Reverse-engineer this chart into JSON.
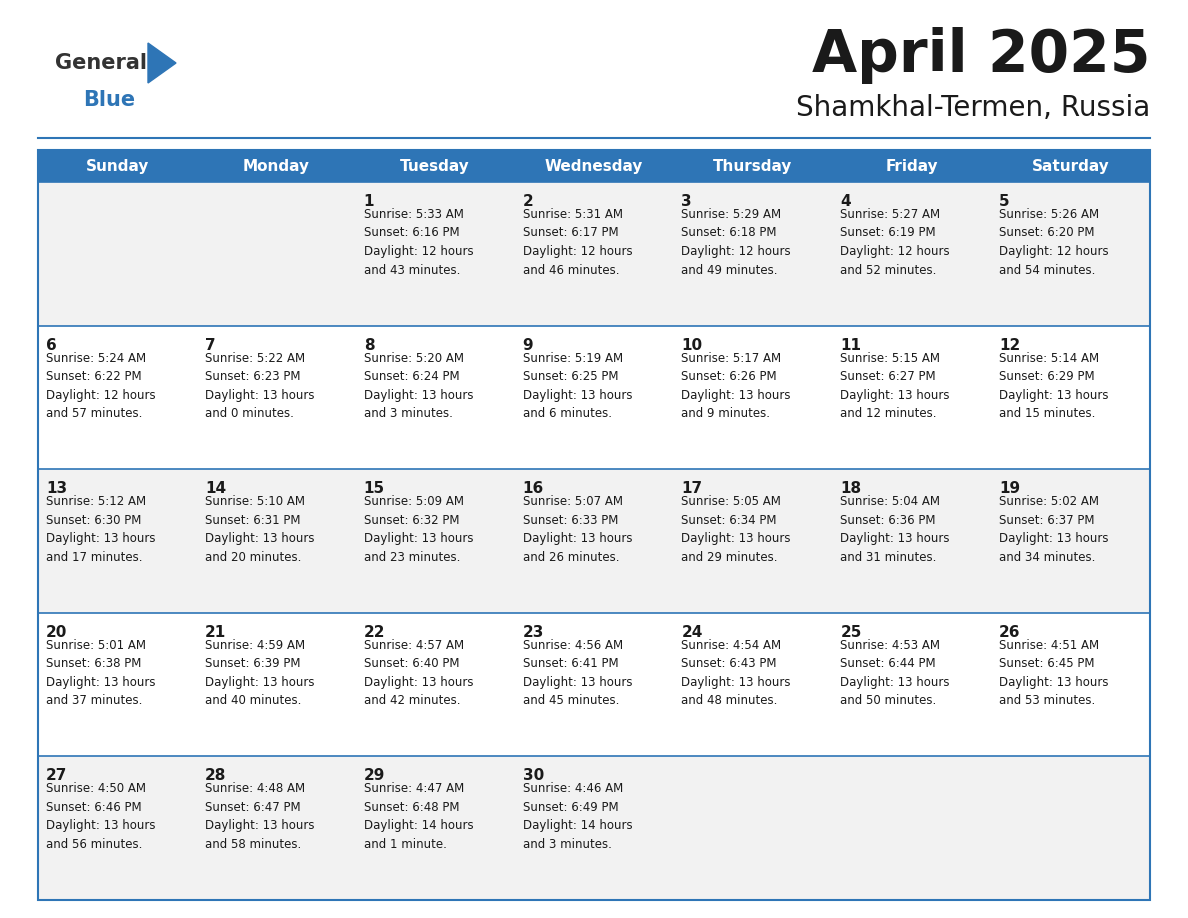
{
  "title": "April 2025",
  "subtitle": "Shamkhal-Termen, Russia",
  "header_bg": "#2E75B6",
  "header_text_color": "#FFFFFF",
  "day_names": [
    "Sunday",
    "Monday",
    "Tuesday",
    "Wednesday",
    "Thursday",
    "Friday",
    "Saturday"
  ],
  "cell_bg_light": "#F2F2F2",
  "cell_bg_white": "#FFFFFF",
  "divider_color": "#2E75B6",
  "text_color": "#1A1A1A",
  "logo_general_color": "#333333",
  "logo_blue_color": "#2E75B6",
  "logo_triangle_color": "#2E75B6",
  "calendar": [
    [
      {
        "day": null,
        "info": ""
      },
      {
        "day": null,
        "info": ""
      },
      {
        "day": 1,
        "info": "Sunrise: 5:33 AM\nSunset: 6:16 PM\nDaylight: 12 hours\nand 43 minutes."
      },
      {
        "day": 2,
        "info": "Sunrise: 5:31 AM\nSunset: 6:17 PM\nDaylight: 12 hours\nand 46 minutes."
      },
      {
        "day": 3,
        "info": "Sunrise: 5:29 AM\nSunset: 6:18 PM\nDaylight: 12 hours\nand 49 minutes."
      },
      {
        "day": 4,
        "info": "Sunrise: 5:27 AM\nSunset: 6:19 PM\nDaylight: 12 hours\nand 52 minutes."
      },
      {
        "day": 5,
        "info": "Sunrise: 5:26 AM\nSunset: 6:20 PM\nDaylight: 12 hours\nand 54 minutes."
      }
    ],
    [
      {
        "day": 6,
        "info": "Sunrise: 5:24 AM\nSunset: 6:22 PM\nDaylight: 12 hours\nand 57 minutes."
      },
      {
        "day": 7,
        "info": "Sunrise: 5:22 AM\nSunset: 6:23 PM\nDaylight: 13 hours\nand 0 minutes."
      },
      {
        "day": 8,
        "info": "Sunrise: 5:20 AM\nSunset: 6:24 PM\nDaylight: 13 hours\nand 3 minutes."
      },
      {
        "day": 9,
        "info": "Sunrise: 5:19 AM\nSunset: 6:25 PM\nDaylight: 13 hours\nand 6 minutes."
      },
      {
        "day": 10,
        "info": "Sunrise: 5:17 AM\nSunset: 6:26 PM\nDaylight: 13 hours\nand 9 minutes."
      },
      {
        "day": 11,
        "info": "Sunrise: 5:15 AM\nSunset: 6:27 PM\nDaylight: 13 hours\nand 12 minutes."
      },
      {
        "day": 12,
        "info": "Sunrise: 5:14 AM\nSunset: 6:29 PM\nDaylight: 13 hours\nand 15 minutes."
      }
    ],
    [
      {
        "day": 13,
        "info": "Sunrise: 5:12 AM\nSunset: 6:30 PM\nDaylight: 13 hours\nand 17 minutes."
      },
      {
        "day": 14,
        "info": "Sunrise: 5:10 AM\nSunset: 6:31 PM\nDaylight: 13 hours\nand 20 minutes."
      },
      {
        "day": 15,
        "info": "Sunrise: 5:09 AM\nSunset: 6:32 PM\nDaylight: 13 hours\nand 23 minutes."
      },
      {
        "day": 16,
        "info": "Sunrise: 5:07 AM\nSunset: 6:33 PM\nDaylight: 13 hours\nand 26 minutes."
      },
      {
        "day": 17,
        "info": "Sunrise: 5:05 AM\nSunset: 6:34 PM\nDaylight: 13 hours\nand 29 minutes."
      },
      {
        "day": 18,
        "info": "Sunrise: 5:04 AM\nSunset: 6:36 PM\nDaylight: 13 hours\nand 31 minutes."
      },
      {
        "day": 19,
        "info": "Sunrise: 5:02 AM\nSunset: 6:37 PM\nDaylight: 13 hours\nand 34 minutes."
      }
    ],
    [
      {
        "day": 20,
        "info": "Sunrise: 5:01 AM\nSunset: 6:38 PM\nDaylight: 13 hours\nand 37 minutes."
      },
      {
        "day": 21,
        "info": "Sunrise: 4:59 AM\nSunset: 6:39 PM\nDaylight: 13 hours\nand 40 minutes."
      },
      {
        "day": 22,
        "info": "Sunrise: 4:57 AM\nSunset: 6:40 PM\nDaylight: 13 hours\nand 42 minutes."
      },
      {
        "day": 23,
        "info": "Sunrise: 4:56 AM\nSunset: 6:41 PM\nDaylight: 13 hours\nand 45 minutes."
      },
      {
        "day": 24,
        "info": "Sunrise: 4:54 AM\nSunset: 6:43 PM\nDaylight: 13 hours\nand 48 minutes."
      },
      {
        "day": 25,
        "info": "Sunrise: 4:53 AM\nSunset: 6:44 PM\nDaylight: 13 hours\nand 50 minutes."
      },
      {
        "day": 26,
        "info": "Sunrise: 4:51 AM\nSunset: 6:45 PM\nDaylight: 13 hours\nand 53 minutes."
      }
    ],
    [
      {
        "day": 27,
        "info": "Sunrise: 4:50 AM\nSunset: 6:46 PM\nDaylight: 13 hours\nand 56 minutes."
      },
      {
        "day": 28,
        "info": "Sunrise: 4:48 AM\nSunset: 6:47 PM\nDaylight: 13 hours\nand 58 minutes."
      },
      {
        "day": 29,
        "info": "Sunrise: 4:47 AM\nSunset: 6:48 PM\nDaylight: 14 hours\nand 1 minute."
      },
      {
        "day": 30,
        "info": "Sunrise: 4:46 AM\nSunset: 6:49 PM\nDaylight: 14 hours\nand 3 minutes."
      },
      {
        "day": null,
        "info": ""
      },
      {
        "day": null,
        "info": ""
      },
      {
        "day": null,
        "info": ""
      }
    ]
  ]
}
